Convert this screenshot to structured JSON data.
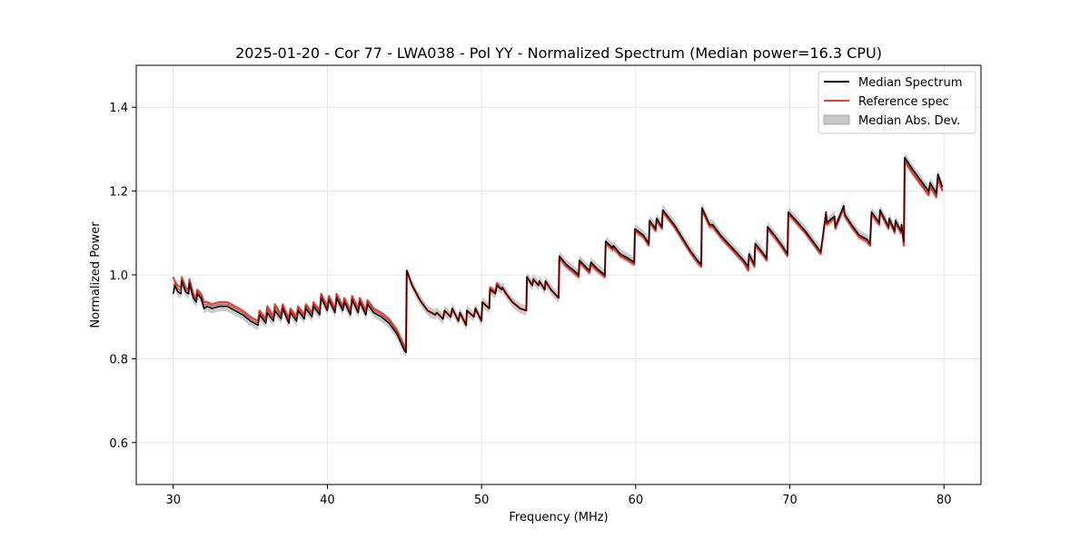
{
  "chart_data": {
    "type": "line",
    "title": "2025-01-20 - Cor 77 - LWA038 - Pol YY - Normalized Spectrum (Median power=16.3 CPU)",
    "xlabel": "Frequency (MHz)",
    "ylabel": "Normalized Power",
    "xlim": [
      27.6,
      82.4
    ],
    "ylim": [
      0.5,
      1.5
    ],
    "xticks": [
      30,
      40,
      50,
      60,
      70,
      80
    ],
    "yticks": [
      0.6,
      0.8,
      1.0,
      1.2,
      1.4
    ],
    "xtick_labels": [
      "30",
      "40",
      "50",
      "60",
      "70",
      "80"
    ],
    "ytick_labels": [
      "0.6",
      "0.8",
      "1.0",
      "1.2",
      "1.4"
    ],
    "grid": true,
    "legend_position": "top-right",
    "legend": [
      {
        "label": "Median Spectrum",
        "kind": "line",
        "color": "#000000"
      },
      {
        "label": "Reference spec",
        "kind": "line",
        "color": "#e8413a"
      },
      {
        "label": "Median Abs. Dev.",
        "kind": "band",
        "color": "#c8c8c8"
      }
    ],
    "mad_halfwidth": 0.012,
    "series": [
      {
        "name": "Median Spectrum",
        "color": "#000000",
        "x": [
          30.0,
          30.1,
          30.3,
          30.5,
          30.55,
          30.8,
          31.0,
          31.05,
          31.3,
          31.5,
          31.55,
          31.8,
          32.0,
          32.2,
          32.5,
          33.0,
          33.5,
          34.0,
          34.5,
          35.0,
          35.5,
          35.6,
          36.0,
          36.1,
          36.5,
          36.6,
          37.0,
          37.1,
          37.5,
          37.6,
          38.0,
          38.1,
          38.5,
          38.6,
          39.0,
          39.1,
          39.5,
          39.6,
          40.0,
          40.1,
          40.5,
          40.6,
          41.0,
          41.1,
          41.5,
          41.6,
          42.0,
          42.1,
          42.5,
          42.6,
          43.0,
          43.5,
          44.0,
          44.5,
          45.0,
          45.1,
          45.15,
          45.5,
          46.0,
          46.5,
          47.0,
          47.1,
          47.5,
          47.6,
          48.0,
          48.1,
          48.5,
          48.6,
          49.0,
          49.05,
          49.5,
          49.6,
          50.0,
          50.05,
          50.5,
          50.55,
          50.9,
          51.0,
          51.3,
          51.35,
          51.6,
          52.0,
          52.5,
          52.9,
          52.95,
          53.3,
          53.35,
          53.7,
          53.75,
          54.1,
          54.15,
          54.5,
          55.0,
          55.05,
          55.5,
          56.0,
          56.3,
          56.35,
          57.0,
          57.1,
          57.5,
          58.0,
          58.05,
          58.5,
          58.55,
          59.0,
          59.5,
          59.9,
          59.95,
          60.5,
          60.85,
          60.9,
          61.3,
          61.35,
          61.7,
          61.75,
          62.5,
          63.0,
          63.5,
          64.0,
          64.25,
          64.3,
          64.8,
          65.0,
          65.5,
          66.0,
          66.5,
          67.0,
          67.3,
          67.35,
          67.7,
          67.75,
          68.2,
          68.5,
          68.55,
          69.0,
          69.5,
          69.85,
          69.9,
          70.4,
          71.0,
          71.5,
          71.8,
          72.0,
          72.35,
          72.4,
          72.9,
          72.95,
          73.5,
          73.55,
          74.0,
          74.5,
          75.0,
          75.2,
          75.3,
          75.8,
          75.85,
          76.4,
          76.45,
          76.8,
          76.85,
          77.2,
          77.25,
          77.4,
          77.45,
          78.0,
          78.5,
          79.0,
          79.1,
          79.5,
          79.6,
          79.9
        ],
        "values": [
          0.955,
          0.975,
          0.96,
          0.955,
          0.985,
          0.96,
          0.955,
          0.98,
          0.945,
          0.935,
          0.955,
          0.945,
          0.92,
          0.925,
          0.92,
          0.925,
          0.925,
          0.915,
          0.905,
          0.89,
          0.88,
          0.905,
          0.885,
          0.91,
          0.89,
          0.915,
          0.895,
          0.92,
          0.885,
          0.91,
          0.89,
          0.915,
          0.895,
          0.92,
          0.9,
          0.925,
          0.905,
          0.945,
          0.915,
          0.94,
          0.91,
          0.945,
          0.915,
          0.935,
          0.905,
          0.94,
          0.91,
          0.935,
          0.905,
          0.93,
          0.91,
          0.9,
          0.885,
          0.86,
          0.82,
          0.815,
          1.01,
          0.975,
          0.94,
          0.915,
          0.905,
          0.91,
          0.895,
          0.915,
          0.9,
          0.92,
          0.89,
          0.91,
          0.88,
          0.915,
          0.9,
          0.92,
          0.89,
          0.935,
          0.92,
          0.965,
          0.955,
          0.975,
          0.965,
          0.97,
          0.955,
          0.935,
          0.92,
          0.915,
          0.995,
          0.975,
          0.99,
          0.975,
          0.985,
          0.965,
          0.985,
          0.965,
          0.945,
          1.045,
          1.025,
          1.01,
          1.0,
          1.035,
          1.01,
          1.03,
          1.015,
          1.0,
          1.08,
          1.065,
          1.07,
          1.05,
          1.04,
          1.03,
          1.11,
          1.095,
          1.075,
          1.13,
          1.11,
          1.135,
          1.115,
          1.155,
          1.12,
          1.09,
          1.06,
          1.035,
          1.025,
          1.16,
          1.12,
          1.12,
          1.095,
          1.075,
          1.055,
          1.035,
          1.02,
          1.05,
          1.025,
          1.075,
          1.055,
          1.04,
          1.115,
          1.095,
          1.07,
          1.05,
          1.15,
          1.13,
          1.105,
          1.08,
          1.065,
          1.055,
          1.15,
          1.125,
          1.14,
          1.115,
          1.165,
          1.145,
          1.12,
          1.095,
          1.085,
          1.075,
          1.15,
          1.125,
          1.155,
          1.115,
          1.135,
          1.105,
          1.13,
          1.105,
          1.12,
          1.08,
          1.28,
          1.25,
          1.225,
          1.2,
          1.22,
          1.195,
          1.24,
          1.21
        ]
      },
      {
        "name": "Reference spec",
        "color": "#e8413a",
        "x": [
          30.0,
          30.1,
          30.3,
          30.5,
          30.55,
          30.8,
          31.0,
          31.05,
          31.3,
          31.5,
          31.55,
          31.8,
          32.0,
          32.2,
          32.5,
          33.0,
          33.5,
          34.0,
          34.5,
          35.0,
          35.5,
          35.6,
          36.0,
          36.1,
          36.5,
          36.6,
          37.0,
          37.1,
          37.5,
          37.6,
          38.0,
          38.1,
          38.5,
          38.6,
          39.0,
          39.1,
          39.5,
          39.6,
          40.0,
          40.1,
          40.5,
          40.6,
          41.0,
          41.1,
          41.5,
          41.6,
          42.0,
          42.1,
          42.5,
          42.6,
          43.0,
          43.5,
          44.0,
          44.5,
          45.0,
          45.1,
          45.15,
          45.5,
          46.0,
          46.5,
          47.0,
          47.1,
          47.5,
          47.6,
          48.0,
          48.1,
          48.5,
          48.6,
          49.0,
          49.05,
          49.5,
          49.6,
          50.0,
          50.05,
          50.5,
          50.55,
          50.9,
          51.0,
          51.3,
          51.35,
          51.6,
          52.0,
          52.5,
          52.9,
          52.95,
          53.3,
          53.35,
          53.7,
          53.75,
          54.1,
          54.15,
          54.5,
          55.0,
          55.05,
          55.5,
          56.0,
          56.3,
          56.35,
          57.0,
          57.1,
          57.5,
          58.0,
          58.05,
          58.5,
          58.55,
          59.0,
          59.5,
          59.9,
          59.95,
          60.5,
          60.85,
          60.9,
          61.3,
          61.35,
          61.7,
          61.75,
          62.5,
          63.0,
          63.5,
          64.0,
          64.25,
          64.3,
          64.8,
          65.0,
          65.5,
          66.0,
          66.5,
          67.0,
          67.3,
          67.35,
          67.7,
          67.75,
          68.2,
          68.5,
          68.55,
          69.0,
          69.5,
          69.85,
          69.9,
          70.4,
          71.0,
          71.5,
          71.8,
          72.0,
          72.35,
          72.4,
          72.9,
          72.95,
          73.5,
          73.55,
          74.0,
          74.5,
          75.0,
          75.2,
          75.3,
          75.8,
          75.85,
          76.4,
          76.45,
          76.8,
          76.85,
          77.2,
          77.25,
          77.4,
          77.45,
          78.0,
          78.5,
          79.0,
          79.1,
          79.5,
          79.6,
          79.9
        ],
        "values": [
          0.995,
          0.985,
          0.975,
          0.97,
          0.995,
          0.97,
          0.965,
          0.99,
          0.955,
          0.945,
          0.965,
          0.955,
          0.935,
          0.935,
          0.93,
          0.935,
          0.935,
          0.925,
          0.915,
          0.9,
          0.89,
          0.915,
          0.895,
          0.925,
          0.9,
          0.93,
          0.905,
          0.93,
          0.895,
          0.92,
          0.9,
          0.925,
          0.905,
          0.93,
          0.91,
          0.935,
          0.915,
          0.955,
          0.925,
          0.95,
          0.92,
          0.955,
          0.925,
          0.945,
          0.915,
          0.95,
          0.92,
          0.945,
          0.915,
          0.94,
          0.92,
          0.91,
          0.895,
          0.87,
          0.83,
          0.82,
          1.01,
          0.975,
          0.94,
          0.915,
          0.905,
          0.91,
          0.895,
          0.915,
          0.9,
          0.92,
          0.89,
          0.91,
          0.88,
          0.915,
          0.9,
          0.92,
          0.89,
          0.935,
          0.92,
          0.97,
          0.96,
          0.98,
          0.965,
          0.97,
          0.955,
          0.935,
          0.92,
          0.915,
          0.995,
          0.975,
          0.99,
          0.975,
          0.985,
          0.965,
          0.985,
          0.965,
          0.945,
          1.04,
          1.02,
          1.005,
          0.995,
          1.03,
          1.005,
          1.025,
          1.01,
          0.995,
          1.075,
          1.06,
          1.065,
          1.045,
          1.035,
          1.025,
          1.105,
          1.09,
          1.07,
          1.125,
          1.105,
          1.13,
          1.11,
          1.15,
          1.115,
          1.085,
          1.055,
          1.03,
          1.02,
          1.155,
          1.115,
          1.115,
          1.09,
          1.07,
          1.05,
          1.03,
          1.01,
          1.045,
          1.02,
          1.07,
          1.05,
          1.035,
          1.11,
          1.09,
          1.065,
          1.045,
          1.145,
          1.125,
          1.1,
          1.075,
          1.06,
          1.05,
          1.145,
          1.12,
          1.135,
          1.11,
          1.16,
          1.14,
          1.115,
          1.09,
          1.08,
          1.07,
          1.145,
          1.12,
          1.15,
          1.11,
          1.13,
          1.1,
          1.125,
          1.1,
          1.115,
          1.07,
          1.27,
          1.24,
          1.215,
          1.19,
          1.21,
          1.185,
          1.23,
          1.2
        ]
      }
    ]
  }
}
